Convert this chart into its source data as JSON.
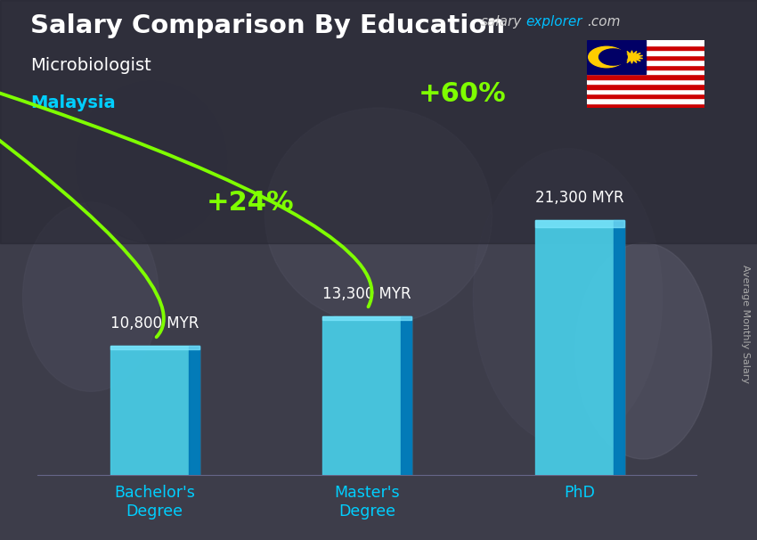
{
  "title": "Salary Comparison By Education",
  "subtitle": "Microbiologist",
  "country": "Malaysia",
  "website_left": "salary",
  "website_mid": "explorer",
  "website_right": ".com",
  "ylabel": "Average Monthly Salary",
  "categories": [
    "Bachelor's\nDegree",
    "Master's\nDegree",
    "PhD"
  ],
  "values": [
    10800,
    13300,
    21300
  ],
  "value_labels": [
    "10,800 MYR",
    "13,300 MYR",
    "21,300 MYR"
  ],
  "bar_color_main": "#00B4D8",
  "bar_color_light": "#48CAE4",
  "bar_color_dark": "#0077B6",
  "bar_color_right": "#0096C7",
  "pct_labels": [
    "+24%",
    "+60%"
  ],
  "pct_color": "#7FFF00",
  "arrow_color": "#7FFF00",
  "title_color": "#FFFFFF",
  "subtitle_color": "#FFFFFF",
  "country_color": "#00CFFF",
  "website_left_color": "#CCCCCC",
  "website_mid_color": "#00BFFF",
  "website_right_color": "#CCCCCC",
  "value_label_color": "#FFFFFF",
  "xlabel_color": "#00CFFF",
  "bg_color": "#2a2a3a",
  "bar_width": 0.42,
  "ylim": [
    0,
    28000
  ],
  "figsize": [
    8.5,
    6.06
  ],
  "dpi": 100
}
